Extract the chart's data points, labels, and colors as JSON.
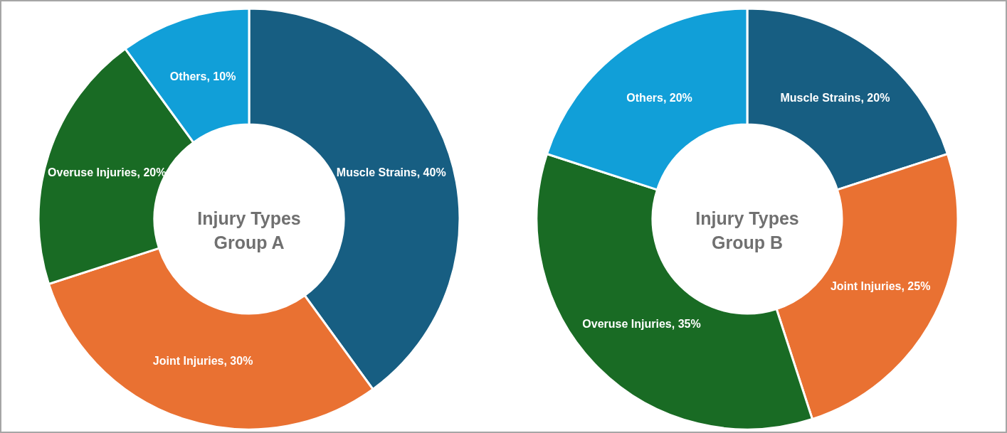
{
  "chart_data": [
    {
      "type": "donut",
      "title": "Injury Types Group A",
      "categories": [
        "Muscle Strains",
        "Joint Injuries",
        "Overuse Injuries",
        "Others"
      ],
      "values": [
        40,
        30,
        20,
        10
      ],
      "colors": [
        "#175e82",
        "#e97132",
        "#196b24",
        "#119fd8"
      ],
      "value_labels": [
        "40%",
        "30%",
        "20%",
        "10%"
      ]
    },
    {
      "type": "donut",
      "title": "Injury Types Group B",
      "categories": [
        "Muscle Strains",
        "Joint Injuries",
        "Overuse Injuries",
        "Others"
      ],
      "values": [
        20,
        25,
        35,
        20
      ],
      "colors": [
        "#175e82",
        "#e97132",
        "#196b24",
        "#119fd8"
      ],
      "value_labels": [
        "20%",
        "25%",
        "35%",
        "20%"
      ]
    }
  ]
}
